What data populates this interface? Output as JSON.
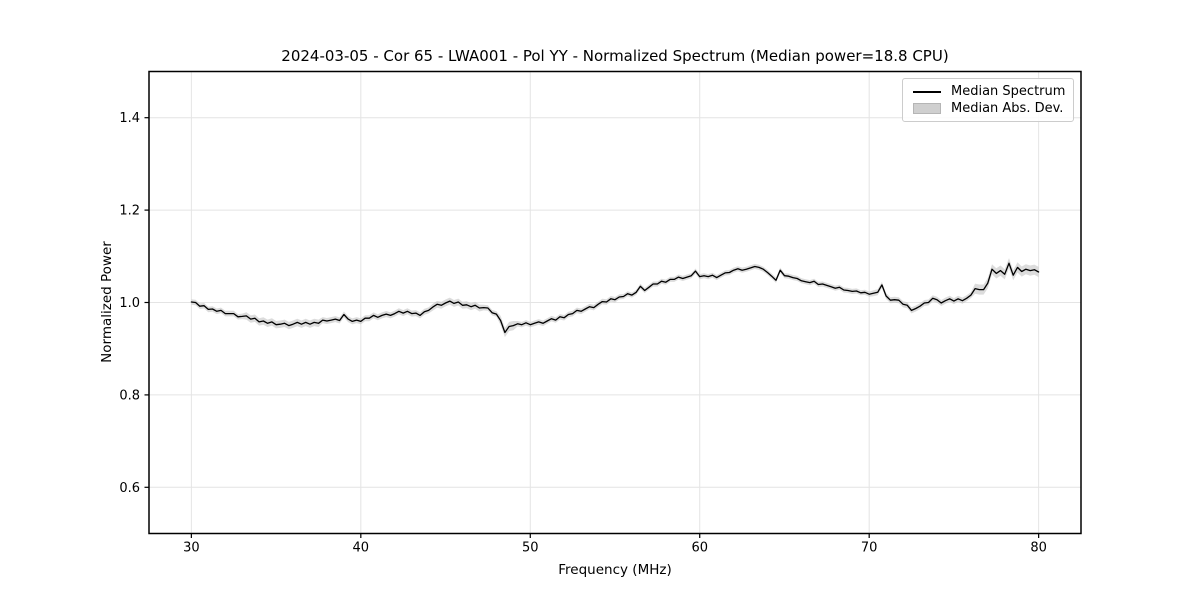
{
  "chart_data": {
    "type": "line",
    "title": "2024-03-05 - Cor 65 - LWA001 - Pol YY - Normalized Spectrum (Median power=18.8 CPU)",
    "xlabel": "Frequency (MHz)",
    "ylabel": "Normalized Power",
    "xlim": [
      27.5,
      82.5
    ],
    "ylim": [
      0.5,
      1.5
    ],
    "xticks": [
      30,
      40,
      50,
      60,
      70,
      80
    ],
    "xtick_labels": [
      "30",
      "40",
      "50",
      "60",
      "70",
      "80"
    ],
    "yticks": [
      0.6,
      0.8,
      1.0,
      1.2,
      1.4
    ],
    "ytick_labels": [
      "0.6",
      "0.8",
      "1.0",
      "1.2",
      "1.4"
    ],
    "grid": true,
    "legend_position": "upper right",
    "legend": {
      "entries": [
        {
          "label": "Median Spectrum",
          "type": "line",
          "color": "#000000"
        },
        {
          "label": "Median Abs. Dev.",
          "type": "patch",
          "color": "#cfcfcf"
        }
      ]
    },
    "colors": {
      "line": "#000000",
      "band": "#bfbfbf",
      "grid": "#e4e4e4",
      "spine": "#000000",
      "text": "#000000"
    },
    "series": [
      {
        "name": "Median Spectrum",
        "x_start": 30.0,
        "x_step": 0.25,
        "y": [
          1.001,
          1.0,
          0.992,
          0.993,
          0.985,
          0.986,
          0.981,
          0.983,
          0.976,
          0.976,
          0.976,
          0.969,
          0.97,
          0.971,
          0.964,
          0.966,
          0.958,
          0.96,
          0.955,
          0.958,
          0.952,
          0.953,
          0.955,
          0.95,
          0.953,
          0.957,
          0.953,
          0.957,
          0.953,
          0.957,
          0.955,
          0.962,
          0.96,
          0.962,
          0.964,
          0.961,
          0.974,
          0.964,
          0.959,
          0.962,
          0.959,
          0.966,
          0.966,
          0.972,
          0.968,
          0.972,
          0.975,
          0.972,
          0.976,
          0.981,
          0.977,
          0.981,
          0.976,
          0.977,
          0.972,
          0.98,
          0.983,
          0.99,
          0.996,
          0.994,
          0.999,
          1.003,
          0.998,
          1.001,
          0.994,
          0.995,
          0.991,
          0.994,
          0.988,
          0.989,
          0.988,
          0.978,
          0.975,
          0.961,
          0.935,
          0.948,
          0.95,
          0.954,
          0.952,
          0.956,
          0.952,
          0.955,
          0.958,
          0.955,
          0.96,
          0.965,
          0.962,
          0.969,
          0.967,
          0.974,
          0.976,
          0.983,
          0.981,
          0.986,
          0.991,
          0.989,
          0.996,
          1.002,
          1.001,
          1.008,
          1.006,
          1.012,
          1.013,
          1.019,
          1.016,
          1.022,
          1.035,
          1.026,
          1.033,
          1.04,
          1.04,
          1.046,
          1.044,
          1.05,
          1.05,
          1.055,
          1.052,
          1.055,
          1.058,
          1.068,
          1.056,
          1.058,
          1.056,
          1.059,
          1.054,
          1.059,
          1.064,
          1.065,
          1.07,
          1.073,
          1.07,
          1.072,
          1.075,
          1.078,
          1.076,
          1.072,
          1.065,
          1.057,
          1.048,
          1.07,
          1.058,
          1.057,
          1.054,
          1.052,
          1.047,
          1.045,
          1.043,
          1.046,
          1.039,
          1.04,
          1.037,
          1.034,
          1.031,
          1.033,
          1.027,
          1.026,
          1.024,
          1.025,
          1.021,
          1.022,
          1.018,
          1.02,
          1.022,
          1.038,
          1.014,
          1.005,
          1.006,
          1.005,
          0.996,
          0.994,
          0.983,
          0.987,
          0.992,
          0.999,
          1.0,
          1.009,
          1.006,
          0.999,
          1.004,
          1.008,
          1.003,
          1.008,
          1.004,
          1.009,
          1.016,
          1.03,
          1.028,
          1.028,
          1.042,
          1.072,
          1.063,
          1.069,
          1.061,
          1.085,
          1.059,
          1.076,
          1.067,
          1.072,
          1.069,
          1.071,
          1.066
        ]
      }
    ],
    "mad_band": {
      "name": "Median Abs. Dev.",
      "regions": [
        {
          "from": 30.0,
          "to": 33.0,
          "mad": 0.006
        },
        {
          "from": 33.0,
          "to": 37.5,
          "mad": 0.008
        },
        {
          "from": 37.5,
          "to": 44.0,
          "mad": 0.0065
        },
        {
          "from": 44.0,
          "to": 47.0,
          "mad": 0.0075
        },
        {
          "from": 47.0,
          "to": 48.2,
          "mad": 0.006
        },
        {
          "from": 48.2,
          "to": 49.0,
          "mad": 0.01
        },
        {
          "from": 49.0,
          "to": 55.0,
          "mad": 0.006
        },
        {
          "from": 55.0,
          "to": 70.0,
          "mad": 0.0055
        },
        {
          "from": 70.0,
          "to": 76.0,
          "mad": 0.0065
        },
        {
          "from": 76.0,
          "to": 80.0,
          "mad": 0.011
        }
      ]
    }
  }
}
